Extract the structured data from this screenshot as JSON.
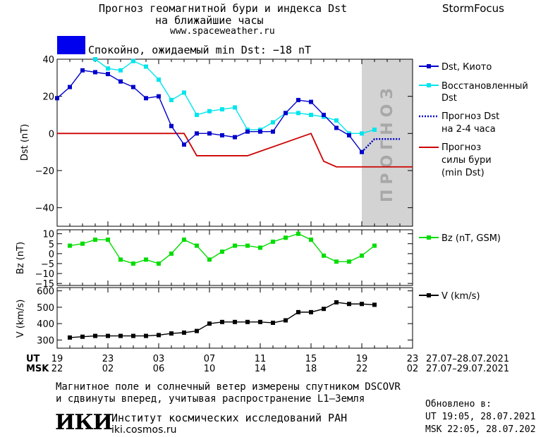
{
  "header": {
    "title_line1": "Прогноз геомагнитной бури и индекса Dst",
    "title_line2": "на ближайшие часы",
    "url": "www.spaceweather.ru",
    "brand": "StormFocus",
    "status_text": "Спокойно, ожидаемый min Dst: −18 nT",
    "status_color": "#0000ee"
  },
  "forecast_label": "ПРОГНОЗ",
  "legend": {
    "dst_kyoto": "Dst, Киото",
    "dst_restored_1": "Восстановленный",
    "dst_restored_2": "Dst",
    "dst_forecast_1": "Прогноз Dst",
    "dst_forecast_2": "на 2-4 часа",
    "storm_1": "Прогноз",
    "storm_2": "силы бури",
    "storm_3": "(min Dst)",
    "bz": "Bz (nT, GSM)",
    "v": "V (km/s)"
  },
  "time_axis": {
    "ut_label": "UT",
    "msk_label": "MSK",
    "ut_ticks": [
      "19",
      "23",
      "03",
      "07",
      "11",
      "15",
      "19",
      "23"
    ],
    "msk_ticks": [
      "22",
      "02",
      "06",
      "10",
      "14",
      "18",
      "22",
      "02"
    ],
    "ut_range": "27.07–28.07.2021",
    "msk_range": "27.07–29.07.2021"
  },
  "footer": {
    "note_line1": "Магнитное поле и солнечный ветер измерены спутником DSCOVR",
    "note_line2": "и сдвинуты вперед, учитывая распространение L1–Земля",
    "logo": "ИКИ",
    "institute": "Институт космических исследований РАН",
    "site": "iki.cosmos.ru",
    "updated_label": "Обновлено в:",
    "updated_ut": "UT  19:05, 28.07.2021",
    "updated_msk": "MSK 22:05, 28.07.2021"
  },
  "chart_data": [
    {
      "type": "line",
      "ylabel": "Dst (nT)",
      "ylim": [
        -50,
        40
      ],
      "yticks": [
        40,
        20,
        0,
        -20,
        -40
      ],
      "xlim": [
        0,
        28
      ],
      "forecast_region": [
        24,
        28
      ],
      "series": [
        {
          "name": "Dst, Киото",
          "color": "#0000cc",
          "x": [
            0,
            1,
            2,
            3,
            4,
            5,
            6,
            7,
            8,
            9,
            10,
            11,
            12,
            13,
            14,
            15,
            16,
            17,
            18,
            19,
            20,
            21,
            22,
            23,
            24
          ],
          "values": [
            19,
            25,
            34,
            33,
            32,
            28,
            25,
            19,
            20,
            4,
            -6,
            0,
            0,
            -1,
            -2,
            1,
            1,
            1,
            11,
            18,
            17,
            10,
            3,
            -1,
            -10
          ]
        },
        {
          "name": "Восстановленный Dst",
          "color": "#00e5ee",
          "x": [
            3,
            4,
            5,
            6,
            7,
            8,
            9,
            10,
            11,
            12,
            13,
            14,
            15,
            16,
            17,
            18,
            19,
            20,
            21,
            22,
            23,
            24,
            25
          ],
          "values": [
            40,
            35,
            34,
            39,
            36,
            29,
            18,
            22,
            10,
            12,
            13,
            14,
            2,
            2,
            6,
            11,
            11,
            10,
            9,
            7,
            0,
            0,
            2
          ]
        },
        {
          "name": "Прогноз Dst на 2-4 часа",
          "color": "#0000cc",
          "x": [
            24,
            25,
            26,
            27
          ],
          "values": [
            -10,
            -3,
            -3,
            -3
          ]
        },
        {
          "name": "Прогноз силы бури (min Dst)",
          "color": "#cc0000",
          "x": [
            0,
            10,
            11,
            15,
            20,
            21,
            22,
            28
          ],
          "values": [
            0,
            0,
            -12,
            -12,
            0,
            -15,
            -18,
            -18
          ]
        }
      ]
    },
    {
      "type": "line",
      "ylabel": "Bz (nT)",
      "ylim": [
        -16,
        12
      ],
      "yticks": [
        10,
        5,
        0,
        -5,
        -10,
        -15
      ],
      "series": [
        {
          "name": "Bz (nT, GSM)",
          "color": "#00dd00",
          "x": [
            1,
            2,
            3,
            4,
            5,
            6,
            7,
            8,
            9,
            10,
            11,
            12,
            13,
            14,
            15,
            16,
            17,
            18,
            19,
            20,
            21,
            22,
            23,
            24,
            25
          ],
          "values": [
            4,
            5,
            7,
            7,
            -3,
            -5,
            -3,
            -5,
            0,
            7,
            4,
            -3,
            1,
            4,
            4,
            3,
            6,
            8,
            10,
            7,
            -1,
            -4,
            -4,
            -1,
            4
          ]
        }
      ]
    },
    {
      "type": "line",
      "ylabel": "V (km/s)",
      "ylim": [
        250,
        620
      ],
      "yticks": [
        600,
        500,
        400,
        300
      ],
      "series": [
        {
          "name": "V (km/s)",
          "color": "#000000",
          "x": [
            1,
            2,
            3,
            4,
            5,
            6,
            7,
            8,
            9,
            10,
            11,
            12,
            13,
            14,
            15,
            16,
            17,
            18,
            19,
            20,
            21,
            22,
            23,
            24,
            25
          ],
          "values": [
            315,
            320,
            325,
            325,
            325,
            325,
            325,
            330,
            340,
            345,
            355,
            400,
            410,
            410,
            410,
            410,
            405,
            420,
            470,
            470,
            490,
            530,
            520,
            520,
            515
          ]
        }
      ]
    }
  ]
}
